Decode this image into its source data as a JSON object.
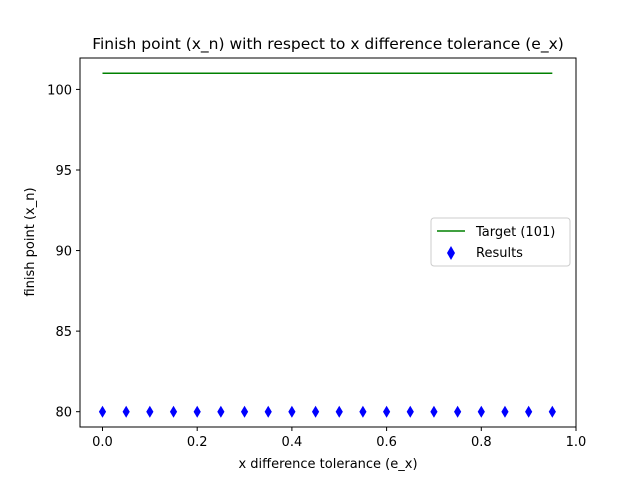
{
  "chart_data": {
    "type": "scatter",
    "title": "Finish point (x_n) with respect to x difference tolerance (e_x)",
    "xlabel": "x difference tolerance (e_x)",
    "ylabel": "finish point (x_n)",
    "xlim": [
      -0.0475,
      1.0
    ],
    "ylim": [
      79.05,
      101.95
    ],
    "xticks": [
      0.0,
      0.2,
      0.4,
      0.6,
      0.8,
      1.0
    ],
    "xtick_labels": [
      "0.0",
      "0.2",
      "0.4",
      "0.6",
      "0.8",
      "1.0"
    ],
    "yticks": [
      80,
      85,
      90,
      95,
      100
    ],
    "ytick_labels": [
      "80",
      "85",
      "90",
      "95",
      "100"
    ],
    "grid": false,
    "legend_position": "center-right",
    "series": [
      {
        "name": "Target (101)",
        "kind": "line",
        "color": "#008000",
        "x": [
          0.0,
          0.95
        ],
        "y": [
          101,
          101
        ]
      },
      {
        "name": "Results",
        "kind": "scatter",
        "marker": "thin-diamond",
        "color": "#0000ff",
        "x": [
          0.0,
          0.05,
          0.1,
          0.15,
          0.2,
          0.25,
          0.3,
          0.35,
          0.4,
          0.45,
          0.5,
          0.55,
          0.6,
          0.65,
          0.7,
          0.75,
          0.8,
          0.85,
          0.9,
          0.95
        ],
        "y": [
          80,
          80,
          80,
          80,
          80,
          80,
          80,
          80,
          80,
          80,
          80,
          80,
          80,
          80,
          80,
          80,
          80,
          80,
          80,
          80
        ]
      }
    ]
  }
}
